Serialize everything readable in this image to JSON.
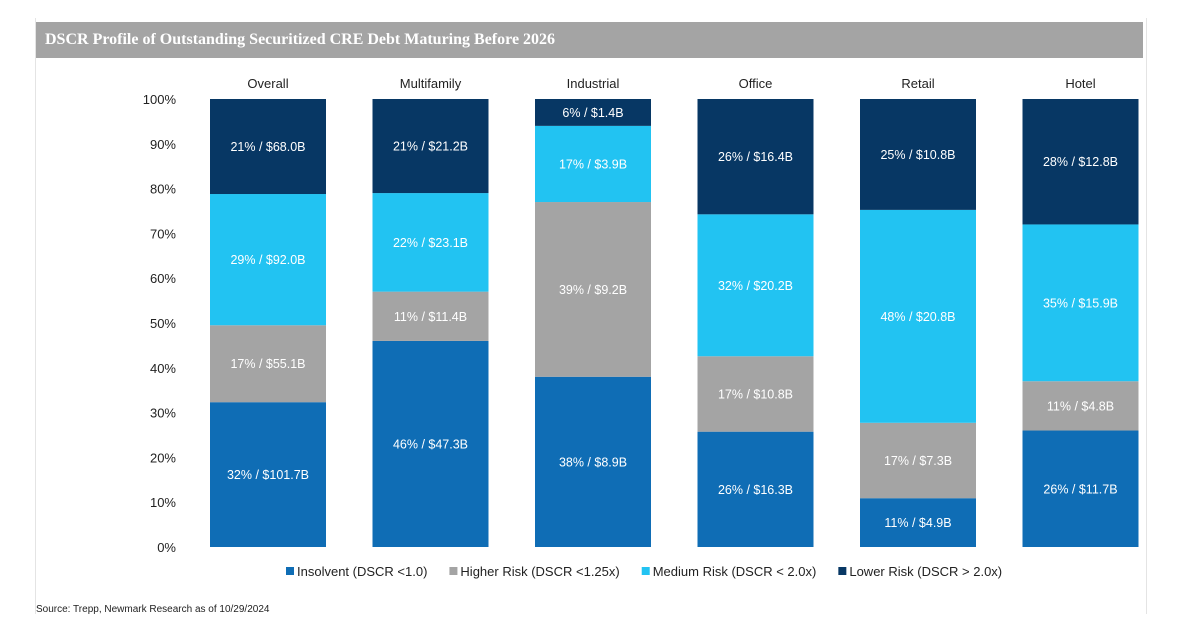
{
  "chart_data": {
    "type": "bar",
    "stacked": true,
    "normalized_percent": true,
    "title": "DSCR Profile of Outstanding Securitized CRE Debt Maturing Before 2026",
    "categories": [
      "Overall",
      "Multifamily",
      "Industrial",
      "Office",
      "Retail",
      "Hotel"
    ],
    "y_ticks": [
      "0%",
      "10%",
      "20%",
      "30%",
      "40%",
      "50%",
      "60%",
      "70%",
      "80%",
      "90%",
      "100%"
    ],
    "ylim": [
      0,
      100
    ],
    "legend_position": "bottom",
    "series": [
      {
        "name": "Insolvent (DSCR <1.0)",
        "color": "#0f6db5",
        "values": [
          32,
          46,
          38,
          26,
          11,
          26
        ],
        "labels": [
          "32% / $101.7B",
          "46% / $47.3B",
          "38% / $8.9B",
          "26% / $16.3B",
          "11% / $4.9B",
          "26% / $11.7B"
        ]
      },
      {
        "name": "Higher Risk (DSCR <1.25x)",
        "color": "#a4a4a4",
        "values": [
          17,
          11,
          39,
          17,
          17,
          11
        ],
        "labels": [
          "17% / $55.1B",
          "11% / $11.4B",
          "39% / $9.2B",
          "17% / $10.8B",
          "17% / $7.3B",
          "11% / $4.8B"
        ]
      },
      {
        "name": "Medium Risk (DSCR < 2.0x)",
        "color": "#22c3f2",
        "values": [
          29,
          22,
          17,
          32,
          48,
          35
        ],
        "labels": [
          "29% / $92.0B",
          "22% / $23.1B",
          "17% / $3.9B",
          "32% / $20.2B",
          "48% / $20.8B",
          "35% / $15.9B"
        ]
      },
      {
        "name": "Lower Risk (DSCR > 2.0x)",
        "color": "#073764",
        "values": [
          21,
          21,
          6,
          26,
          25,
          28
        ],
        "labels": [
          "21% / $68.0B",
          "21% / $21.2B",
          "6% / $1.4B",
          "26% / $16.4B",
          "25% / $10.8B",
          "28% / $12.8B"
        ]
      }
    ]
  },
  "source": "Source: Trepp, Newmark Research as of 10/29/2024"
}
